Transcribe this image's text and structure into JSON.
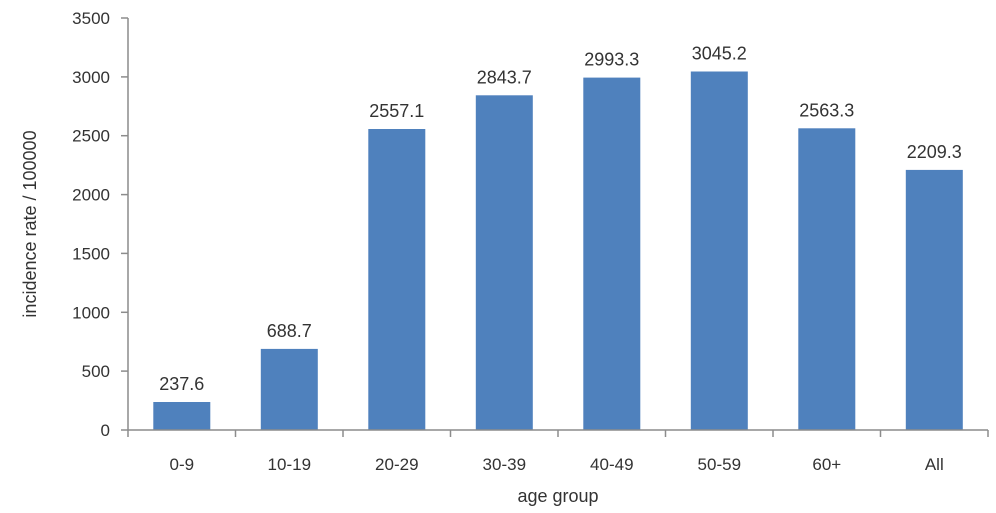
{
  "chart_data": {
    "type": "bar",
    "categories": [
      "0-9",
      "10-19",
      "20-29",
      "30-39",
      "40-49",
      "50-59",
      "60+",
      "All"
    ],
    "values": [
      237.6,
      688.7,
      2557.1,
      2843.7,
      2993.3,
      3045.2,
      2563.3,
      2209.3
    ],
    "data_labels": [
      "237.6",
      "688.7",
      "2557.1",
      "2843.7",
      "2993.3",
      "3045.2",
      "2563.3",
      "2209.3"
    ],
    "xlabel": "age group",
    "ylabel": "incidence rate / 100000",
    "ylim": [
      0,
      3500
    ],
    "yticks": [
      0,
      500,
      1000,
      1500,
      2000,
      2500,
      3000,
      3500
    ],
    "grid": false,
    "colors": {
      "bar": "#4f81bd",
      "axis": "#8c8c8c",
      "text": "#333333"
    }
  }
}
